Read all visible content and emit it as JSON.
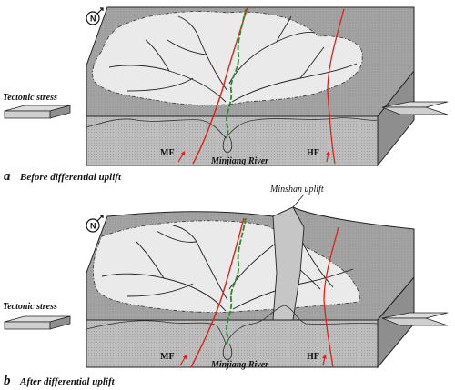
{
  "panels": [
    {
      "id": "a",
      "caption_letter": "a",
      "caption_text": "Before differential uplift",
      "left_stress_label": "Tectonic stress",
      "river_label": "Minjiang River",
      "fault_left": "MF",
      "fault_right": "HF"
    },
    {
      "id": "b",
      "caption_letter": "b",
      "caption_text": "After differential uplift",
      "left_stress_label": "Tectonic stress",
      "river_label": "Minjiang River",
      "fault_left": "MF",
      "fault_right": "HF",
      "uplift_label": "Minshan uplift"
    }
  ],
  "colors": {
    "block_top_dark": "#9a9a9a",
    "valley_light": "#ececec",
    "block_side": "#b4b4b4",
    "block_side_dark": "#8c8c8c",
    "fault": "#e0201a",
    "river": "#2f8a2f",
    "outline": "#222222"
  },
  "icons": [
    "north-arrow-icon",
    "stress-arrow-icon",
    "fault-arrow-icon"
  ]
}
